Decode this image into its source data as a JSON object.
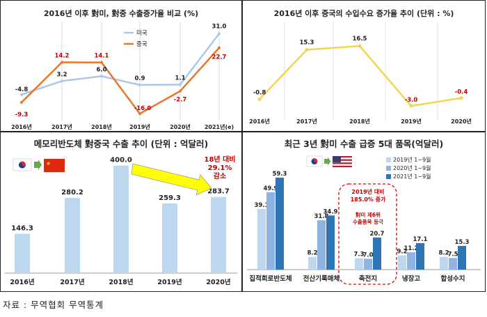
{
  "source_note": "자료 : 무역협회 무역통계",
  "charts": [
    {
      "title": "2016년 이후 對미, 對중 수출증가율 비교 (%)",
      "chart_data": {
        "type": "line",
        "categories": [
          "2016년",
          "2017년",
          "2018년",
          "2019년",
          "2020년",
          "2021년(e)"
        ],
        "series": [
          {
            "name": "미국",
            "color": "#a9c8e8",
            "values": [
              -4.8,
              3.2,
              6.0,
              0.9,
              1.1,
              31.0
            ],
            "labels": [
              "-4.8",
              "3.2",
              "6.0",
              "0.9",
              "1.1",
              "31.0"
            ]
          },
          {
            "name": "중국",
            "color": "#e8772e",
            "values": [
              -9.3,
              14.2,
              14.1,
              -16.0,
              -2.7,
              22.7
            ],
            "labels": [
              "-9.3",
              "14.2",
              "14.1",
              "-16.0",
              "-2.7",
              "22.7"
            ]
          }
        ],
        "ylim": [
          -20,
          34
        ],
        "legend": "top-left"
      }
    },
    {
      "title": "2016년 이후 중국의 수입수요 증가율 추이 (단위 : %)",
      "chart_data": {
        "type": "line",
        "categories": [
          "2016년",
          "2017년",
          "2018년",
          "2019년",
          "2020년"
        ],
        "series": [
          {
            "color": "#f5d352",
            "values": [
              -0.8,
              15.3,
              16.5,
              -3.0,
              -0.4
            ],
            "labels": [
              "-0.8",
              "15.3",
              "16.5",
              "-3.0",
              "-0.4"
            ]
          }
        ],
        "ylim": [
          -5,
          19
        ]
      }
    },
    {
      "title": "메모리반도체 對중국 수출 추이 (단위 : 억달러)",
      "chart_data": {
        "type": "bar",
        "categories": [
          "2016년",
          "2017년",
          "2018년",
          "2019년",
          "2020년"
        ],
        "values": [
          146.3,
          280.2,
          400.0,
          259.3,
          283.7
        ],
        "labels": [
          "146.3",
          "280.2",
          "400.0",
          "259.3",
          "283.7"
        ],
        "ylim": [
          0,
          420
        ],
        "color": "#bdd7ee",
        "annotation": [
          "18년 대비",
          "29.1%",
          "감소"
        ],
        "annotation_color": "#c00000"
      }
    },
    {
      "title": "최근 3년 對미 수출 급증 5대 품목(억달러)",
      "chart_data": {
        "type": "bar",
        "categories": [
          "집적회로반도체",
          "전산기록매체",
          "축전지",
          "냉장고",
          "합성수지"
        ],
        "series": [
          {
            "name": "2019년 1~9월",
            "color": "#bdd7ee",
            "values": [
              39.1,
              8.2,
              7.3,
              9.2,
              8.2
            ],
            "labels": [
              "39.1",
              "8.2",
              "7.3",
              "9.2",
              "8.2"
            ]
          },
          {
            "name": "2020년 1~9월",
            "color": "#8fb4e3",
            "values": [
              49.9,
              31.8,
              7.0,
              11.2,
              7.5
            ],
            "labels": [
              "49.9",
              "31.8",
              "7.0",
              "11.2",
              "7.5"
            ]
          },
          {
            "name": "2021년 1~9월",
            "color": "#2e75b6",
            "values": [
              59.3,
              34.9,
              20.7,
              17.1,
              15.3
            ],
            "labels": [
              "59.3",
              "34.9",
              "20.7",
              "17.1",
              "15.3"
            ]
          }
        ],
        "ylim": [
          0,
          75
        ],
        "legend": "top-right",
        "highlight_category": "축전지",
        "annotation": [
          "2019년 대비",
          "185.0% 증가",
          "對미 제6위",
          "수출품목 등극"
        ],
        "annotation_color": "#c00000"
      }
    }
  ]
}
